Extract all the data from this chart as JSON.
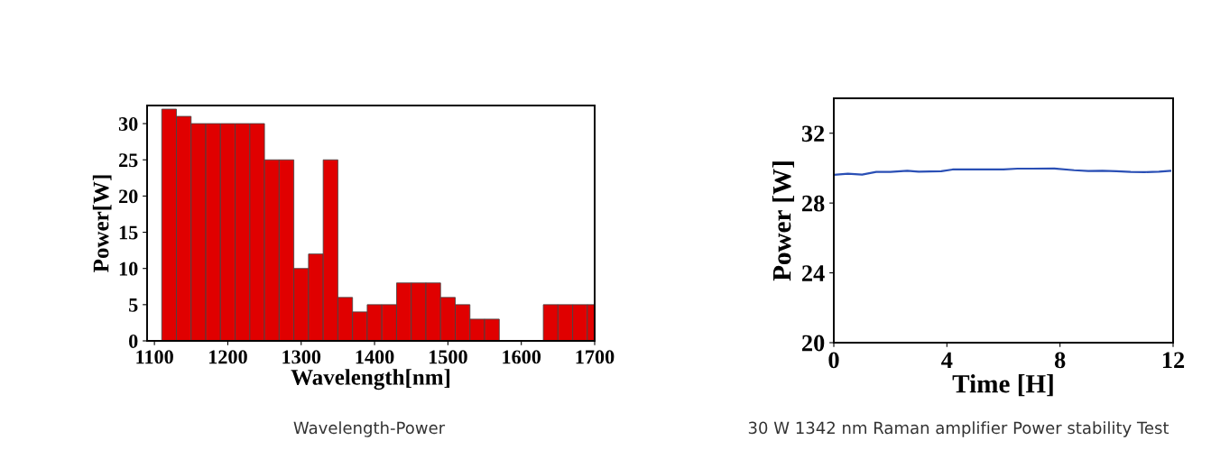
{
  "chart_data": [
    {
      "type": "histogram",
      "title": "Wavelength-Power",
      "xlabel": "Wavelength[nm]",
      "ylabel": "Power[W]",
      "bins": [
        1110,
        1130,
        1150,
        1170,
        1190,
        1210,
        1230,
        1250,
        1270,
        1290,
        1310,
        1330,
        1350,
        1370,
        1390,
        1410,
        1430,
        1450,
        1470,
        1490,
        1510,
        1530,
        1550,
        1570,
        1630,
        1650,
        1670,
        1690,
        1700
      ],
      "values": [
        32,
        31,
        30,
        30,
        30,
        30,
        30,
        25,
        25,
        10,
        12,
        25,
        6,
        4,
        5,
        5,
        8,
        8,
        8,
        6,
        5,
        3,
        3,
        0,
        5,
        5,
        5,
        5
      ],
      "color": "#e00000",
      "xlim": [
        1090,
        1700
      ],
      "xticks": [
        1100,
        1200,
        1300,
        1400,
        1500,
        1600,
        1700
      ],
      "ylim": [
        0,
        32.5
      ],
      "yticks": [
        0,
        5,
        10,
        15,
        20,
        25,
        30
      ]
    },
    {
      "type": "line",
      "title": "30 W 1342 nm Raman amplifier Power stability Test",
      "xlabel": "Time [H]",
      "ylabel": "Power [W]",
      "x": [
        0,
        0.5,
        1,
        1.5,
        2,
        2.6,
        3,
        3.8,
        4.2,
        5,
        6,
        6.5,
        7,
        7.8,
        8.5,
        9,
        9.5,
        10,
        10.5,
        11,
        11.5,
        11.9
      ],
      "series": [
        {
          "color": "#2a4fb5",
          "values": [
            29.62,
            29.68,
            29.63,
            29.78,
            29.78,
            29.85,
            29.8,
            29.82,
            29.92,
            29.93,
            29.93,
            29.97,
            29.97,
            29.98,
            29.88,
            29.84,
            29.85,
            29.82,
            29.78,
            29.77,
            29.8,
            29.84
          ]
        }
      ],
      "xlim": [
        0,
        12
      ],
      "xticks": [
        0,
        4,
        8,
        12
      ],
      "ylim": [
        20,
        34
      ],
      "yticks": [
        20,
        24,
        28,
        32
      ],
      "marker": "none",
      "line_style": "solid"
    }
  ]
}
